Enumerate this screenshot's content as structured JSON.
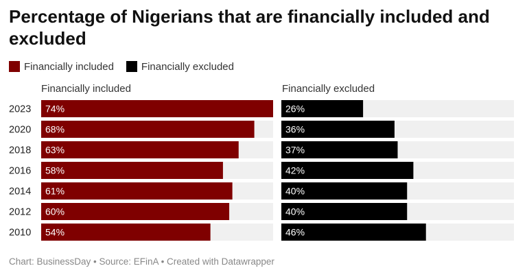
{
  "title": "Percentage of Nigerians that are financially included and excluded",
  "footer": "Chart: BusinessDay • Source: EFinA • Created with Datawrapper",
  "legend": [
    {
      "label": "Financially included",
      "color": "#7f0000"
    },
    {
      "label": "Financially excluded",
      "color": "#000000"
    }
  ],
  "chart_data": {
    "type": "bar",
    "orientation": "horizontal",
    "categories": [
      "2023",
      "2020",
      "2018",
      "2016",
      "2014",
      "2012",
      "2010"
    ],
    "series": [
      {
        "name": "Financially included",
        "color": "#7f0000",
        "values": [
          74,
          68,
          63,
          58,
          61,
          60,
          54
        ],
        "labels": [
          "74%",
          "68%",
          "63%",
          "58%",
          "61%",
          "60%",
          "54%"
        ]
      },
      {
        "name": "Financially excluded",
        "color": "#000000",
        "values": [
          26,
          36,
          37,
          42,
          40,
          40,
          46
        ],
        "labels": [
          "26%",
          "36%",
          "37%",
          "42%",
          "40%",
          "40%",
          "46%"
        ]
      }
    ],
    "xlim": [
      0,
      74
    ],
    "background_bar_color": "#f0f0f0",
    "legend_position": "top-left",
    "grid": false
  }
}
